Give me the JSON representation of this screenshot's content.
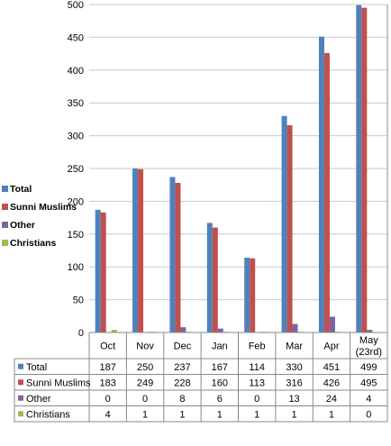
{
  "chart_data": {
    "type": "bar",
    "title": "",
    "xlabel": "",
    "ylabel": "",
    "ylim": [
      0,
      500
    ],
    "yticks": [
      0,
      50,
      100,
      150,
      200,
      250,
      300,
      350,
      400,
      450,
      500
    ],
    "grid": "horizontal",
    "legend_position": "left",
    "categories": [
      [
        "Oct"
      ],
      [
        "Nov"
      ],
      [
        "Dec"
      ],
      [
        "Jan"
      ],
      [
        "Feb"
      ],
      [
        "Mar"
      ],
      [
        "Apr"
      ],
      [
        "May",
        "(23rd)"
      ]
    ],
    "series": [
      {
        "name": "Total",
        "color": "#4F81BD",
        "values": [
          187,
          250,
          237,
          167,
          114,
          330,
          451,
          499
        ]
      },
      {
        "name": "Sunni Muslims",
        "color": "#C0504D",
        "values": [
          183,
          249,
          228,
          160,
          113,
          316,
          426,
          495
        ]
      },
      {
        "name": "Other",
        "color": "#8064A2",
        "values": [
          0,
          0,
          8,
          6,
          0,
          13,
          24,
          4
        ]
      },
      {
        "name": "Christians",
        "color": "#9BBB59",
        "values": [
          4,
          1,
          1,
          1,
          1,
          1,
          1,
          0
        ]
      }
    ],
    "data_table": true
  }
}
